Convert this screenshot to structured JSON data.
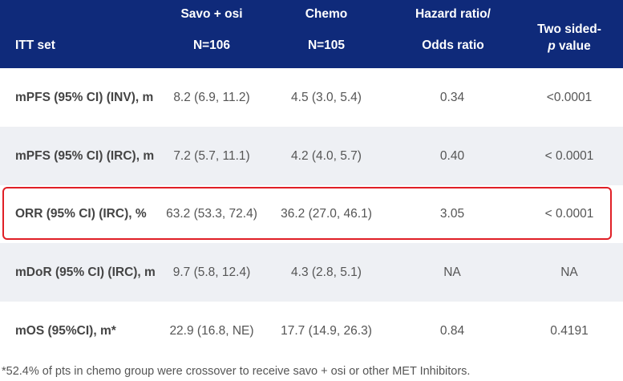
{
  "header": {
    "itt": "ITT set",
    "cols": [
      {
        "line1": "Savo + osi",
        "line2": "N=106"
      },
      {
        "line1": "Chemo",
        "line2": "N=105"
      },
      {
        "line1": "Hazard ratio/",
        "line2": "Odds ratio"
      },
      {
        "line1": "Two sided-",
        "line2_italic": "p",
        "line2_rest": " value"
      }
    ]
  },
  "rows": [
    {
      "label": "mPFS (95% CI) (INV), m",
      "savo": "8.2 (6.9, 11.2)",
      "chemo": "4.5 (3.0, 5.4)",
      "ratio": "0.34",
      "p": "<0.0001"
    },
    {
      "label": "mPFS (95% CI) (IRC), m",
      "savo": "7.2 (5.7, 11.1)",
      "chemo": "4.2 (4.0, 5.7)",
      "ratio": "0.40",
      "p": "< 0.0001"
    },
    {
      "label": "ORR (95% CI) (IRC), %",
      "savo": "63.2 (53.3, 72.4)",
      "chemo": "36.2 (27.0, 46.1)",
      "ratio": "3.05",
      "p": "< 0.0001"
    },
    {
      "label": "mDoR (95% CI) (IRC), m",
      "savo": "9.7 (5.8, 12.4)",
      "chemo": "4.3 (2.8, 5.1)",
      "ratio": "NA",
      "p": "NA"
    },
    {
      "label": "mOS (95%CI), m*",
      "savo": "22.9 (16.8, NE)",
      "chemo": "17.7 (14.9, 26.3)",
      "ratio": "0.84",
      "p": "0.4191"
    }
  ],
  "footnote": "*52.4% of pts in chemo group were crossover to receive savo + osi or other MET Inhibitors.",
  "colors": {
    "header_bg": "#0f2a7a",
    "alt_row_bg": "#eef0f4",
    "highlight": "#e01f26"
  }
}
